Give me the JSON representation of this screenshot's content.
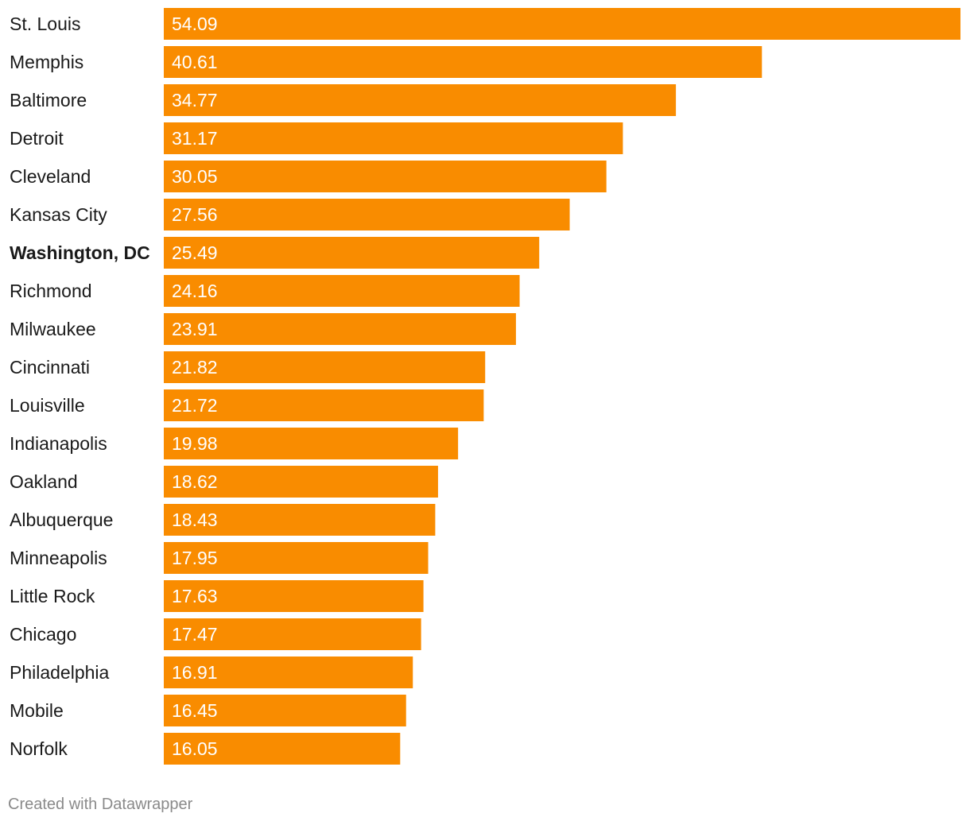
{
  "chart_data": {
    "type": "bar",
    "orientation": "horizontal",
    "title": "",
    "xlabel": "",
    "ylabel": "",
    "categories": [
      "St. Louis",
      "Memphis",
      "Baltimore",
      "Detroit",
      "Cleveland",
      "Kansas City",
      "Washington, DC",
      "Richmond",
      "Milwaukee",
      "Cincinnati",
      "Louisville",
      "Indianapolis",
      "Oakland",
      "Albuquerque",
      "Minneapolis",
      "Little Rock",
      "Chicago",
      "Philadelphia",
      "Mobile",
      "Norfolk"
    ],
    "values": [
      54.09,
      40.61,
      34.77,
      31.17,
      30.05,
      27.56,
      25.49,
      24.16,
      23.91,
      21.82,
      21.72,
      19.98,
      18.62,
      18.43,
      17.95,
      17.63,
      17.47,
      16.91,
      16.45,
      16.05
    ],
    "value_labels": [
      "54.09",
      "40.61",
      "34.77",
      "31.17",
      "30.05",
      "27.56",
      "25.49",
      "24.16",
      "23.91",
      "21.82",
      "21.72",
      "19.98",
      "18.62",
      "18.43",
      "17.95",
      "17.63",
      "17.47",
      "16.91",
      "16.45",
      "16.05"
    ],
    "highlighted_category": "Washington, DC",
    "xlim": [
      0,
      54.09
    ],
    "grid": false,
    "legend": "none",
    "bar_color": "#f98c00"
  },
  "footer": {
    "credit": "Created with Datawrapper"
  }
}
